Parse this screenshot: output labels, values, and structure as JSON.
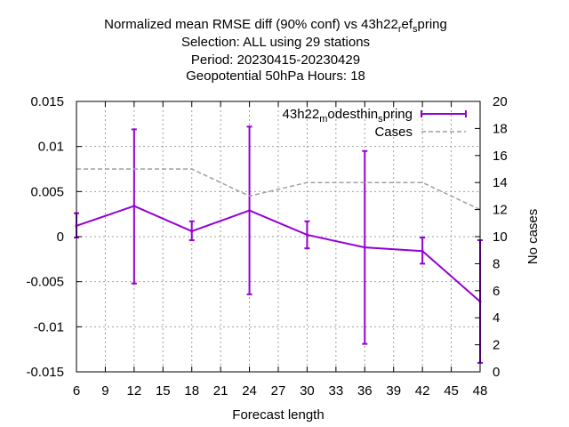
{
  "chart_data": {
    "type": "line",
    "title_lines": [
      "Normalized mean RMSE diff (90% conf) vs 43h22_ref_spring",
      "Selection: ALL using    29 stations",
      "Period: 20230415-20230429",
      "Geopotential 50hPa   Hours:  18"
    ],
    "title_runs": [
      [
        {
          "t": "Normalized mean RMSE diff (90% conf) vs 43h22"
        },
        {
          "t": "r",
          "sub": true
        },
        {
          "t": "ef"
        },
        {
          "t": "s",
          "sub": true
        },
        {
          "t": "pring"
        }
      ],
      [
        {
          "t": "Selection: ALL using    29 stations"
        }
      ],
      [
        {
          "t": "Period: 20230415-20230429"
        }
      ],
      [
        {
          "t": "Geopotential 50hPa   Hours:  18"
        }
      ]
    ],
    "xlabel": "Forecast length",
    "ylabel": "",
    "y2label": "No cases",
    "xlim": [
      6,
      48
    ],
    "ylim": [
      -0.015,
      0.015
    ],
    "y2lim": [
      0,
      20
    ],
    "xticks": [
      6,
      9,
      12,
      15,
      18,
      21,
      24,
      27,
      30,
      33,
      36,
      39,
      42,
      45,
      48
    ],
    "xtick_labels": [
      "6",
      "9",
      "12",
      "15",
      "18",
      "21",
      "24",
      "27",
      "30",
      "33",
      "36",
      "39",
      "42",
      "45",
      "48"
    ],
    "yticks": [
      -0.015,
      -0.01,
      -0.005,
      0,
      0.005,
      0.01,
      0.015
    ],
    "ytick_labels": [
      "-0.015",
      "-0.01",
      "-0.005",
      "0",
      "0.005",
      "0.01",
      "0.015"
    ],
    "y2ticks": [
      0,
      2,
      4,
      6,
      8,
      10,
      12,
      14,
      16,
      18,
      20
    ],
    "y2tick_labels": [
      "0",
      "2",
      "4",
      "6",
      "8",
      "10",
      "12",
      "14",
      "16",
      "18",
      "20"
    ],
    "grid": true,
    "legend_position": "top-right",
    "series": [
      {
        "name": "43h22_modesthin_spring",
        "legend_runs": [
          {
            "t": "43h22"
          },
          {
            "t": "m",
            "sub": true
          },
          {
            "t": "odesthin"
          },
          {
            "t": "s",
            "sub": true
          },
          {
            "t": "pring"
          }
        ],
        "color": "#9400d3",
        "style": "errorbars-line",
        "axis": "y",
        "x": [
          6,
          12,
          18,
          24,
          30,
          36,
          42,
          48
        ],
        "y": [
          0.0012,
          0.0034,
          0.0006,
          0.0029,
          0.0002,
          -0.0012,
          -0.0016,
          -0.0072
        ],
        "y_low": [
          -0.0001,
          -0.0052,
          -0.0004,
          -0.0064,
          -0.0013,
          -0.0119,
          -0.003,
          -0.014
        ],
        "y_high": [
          0.0026,
          0.0119,
          0.0017,
          0.0122,
          0.0017,
          0.0095,
          -0.0001,
          -0.0004
        ]
      },
      {
        "name": "Cases",
        "legend_runs": [
          {
            "t": "Cases"
          }
        ],
        "color": "#a0a0a0",
        "style": "dashed",
        "axis": "y2",
        "x": [
          6,
          12,
          18,
          24,
          30,
          36,
          42,
          48
        ],
        "y": [
          15,
          15,
          15,
          13,
          14,
          14,
          14,
          12
        ]
      }
    ]
  }
}
